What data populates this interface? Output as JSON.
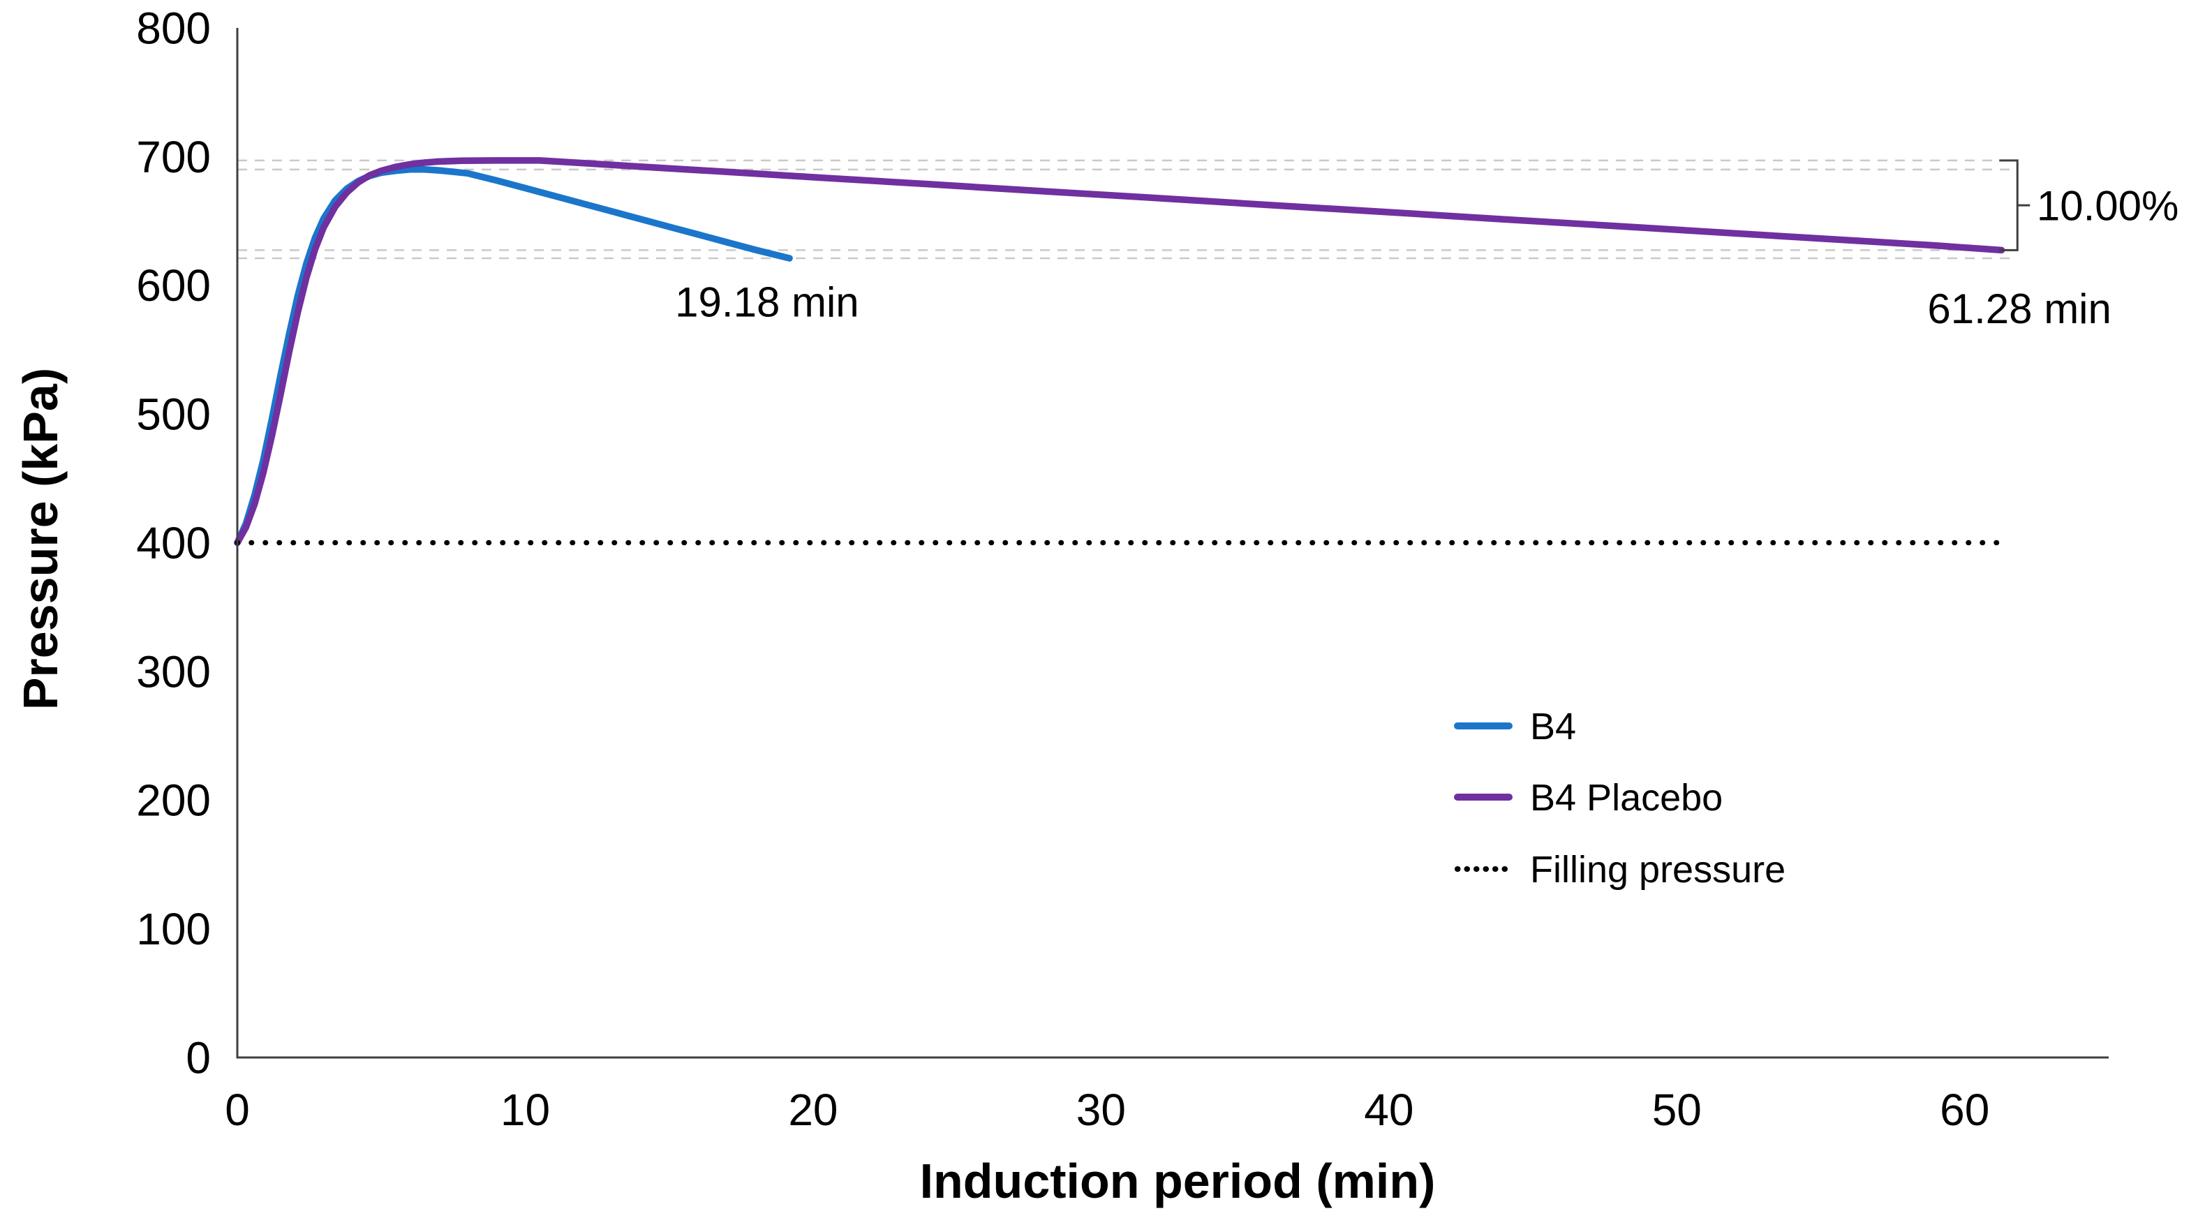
{
  "chart_data": {
    "type": "line",
    "title": "",
    "xlabel": "Induction period (min)",
    "ylabel": "Pressure (kPa)",
    "xlim": [
      0,
      65
    ],
    "ylim": [
      0,
      800
    ],
    "xticks": [
      0,
      10,
      20,
      30,
      40,
      50,
      60
    ],
    "yticks": [
      0,
      100,
      200,
      300,
      400,
      500,
      600,
      700,
      800
    ],
    "grid": "off",
    "colors": {
      "b4": "#1B76CB",
      "b4_placebo": "#7030A0",
      "filling_pressure": "#000000",
      "axis": "#3F3F3F",
      "reference_dash": "#C9C9C9",
      "text": "#000000"
    },
    "series": [
      {
        "name": "B4",
        "color": "#1B76CB",
        "style": "solid",
        "points": [
          [
            0,
            400
          ],
          [
            0.3,
            415
          ],
          [
            0.6,
            437
          ],
          [
            0.9,
            464
          ],
          [
            1.2,
            496
          ],
          [
            1.5,
            530
          ],
          [
            1.8,
            562
          ],
          [
            2.1,
            592
          ],
          [
            2.4,
            617
          ],
          [
            2.7,
            637
          ],
          [
            3.0,
            652
          ],
          [
            3.4,
            666
          ],
          [
            3.8,
            675
          ],
          [
            4.2,
            681
          ],
          [
            4.6,
            685
          ],
          [
            5.0,
            687.5
          ],
          [
            5.5,
            689
          ],
          [
            6.0,
            690
          ],
          [
            6.5,
            690
          ],
          [
            7.0,
            689.3
          ],
          [
            7.5,
            688.2
          ],
          [
            8.0,
            687
          ],
          [
            9,
            681.5
          ],
          [
            10,
            675.5
          ],
          [
            11,
            669.5
          ],
          [
            12,
            663.5
          ],
          [
            13,
            657.5
          ],
          [
            14,
            651.5
          ],
          [
            15,
            645.5
          ],
          [
            16,
            639.5
          ],
          [
            17,
            633.5
          ],
          [
            18,
            627.5
          ],
          [
            19.18,
            621
          ]
        ]
      },
      {
        "name": "B4 Placebo",
        "color": "#7030A0",
        "style": "solid",
        "points": [
          [
            0,
            400
          ],
          [
            0.3,
            412
          ],
          [
            0.6,
            430
          ],
          [
            0.9,
            454
          ],
          [
            1.2,
            483
          ],
          [
            1.5,
            515
          ],
          [
            1.8,
            548
          ],
          [
            2.1,
            579
          ],
          [
            2.4,
            606
          ],
          [
            2.7,
            628
          ],
          [
            3.0,
            645
          ],
          [
            3.4,
            661
          ],
          [
            3.8,
            672
          ],
          [
            4.2,
            680
          ],
          [
            4.6,
            685.5
          ],
          [
            5.0,
            689
          ],
          [
            5.5,
            692
          ],
          [
            6.0,
            694
          ],
          [
            6.5,
            695.3
          ],
          [
            7.0,
            696.2
          ],
          [
            7.8,
            696.8
          ],
          [
            9,
            697
          ],
          [
            10.5,
            697
          ],
          [
            12,
            695
          ],
          [
            14,
            692.2
          ],
          [
            16,
            689.5
          ],
          [
            18,
            686.8
          ],
          [
            20,
            684
          ],
          [
            24,
            678.6
          ],
          [
            28,
            673.1
          ],
          [
            32,
            667.7
          ],
          [
            36,
            662.2
          ],
          [
            40,
            656.8
          ],
          [
            44,
            651.3
          ],
          [
            48,
            645.9
          ],
          [
            52,
            640.4
          ],
          [
            56,
            635
          ],
          [
            59,
            630.9
          ],
          [
            61.28,
            627.3
          ]
        ]
      },
      {
        "name": "Filling pressure",
        "color": "#000000",
        "style": "dotted",
        "points": [
          [
            0,
            400
          ],
          [
            61.2,
            400
          ]
        ]
      }
    ],
    "reference_lines": {
      "note": "light dashed guides at each curve maximum and its 10% drop level",
      "values": [
        697,
        690,
        627.3,
        621
      ],
      "x_start": 0,
      "x_end": 61.83
    },
    "bracket": {
      "x": 61.83,
      "top_value": 697,
      "bottom_value": 627.3,
      "label": "10.00%"
    },
    "annotations": [
      {
        "id": "b4_end_time",
        "text": "19.18 min",
        "x": 18.4,
        "y": 587,
        "anchor": "middle"
      },
      {
        "id": "placebo_end_time",
        "text": "61.28 min",
        "x": 61.9,
        "y": 582,
        "anchor": "middle"
      },
      {
        "id": "pressure_drop_pct",
        "text": "10.00%",
        "x": 62.5,
        "y": 662,
        "anchor": "start"
      }
    ],
    "legend": {
      "position": "right-center",
      "entries": [
        {
          "label": "B4",
          "color": "#1B76CB",
          "style": "solid"
        },
        {
          "label": "B4 Placebo",
          "color": "#7030A0",
          "style": "solid"
        },
        {
          "label": "Filling pressure",
          "color": "#000000",
          "style": "dotted"
        }
      ]
    }
  }
}
